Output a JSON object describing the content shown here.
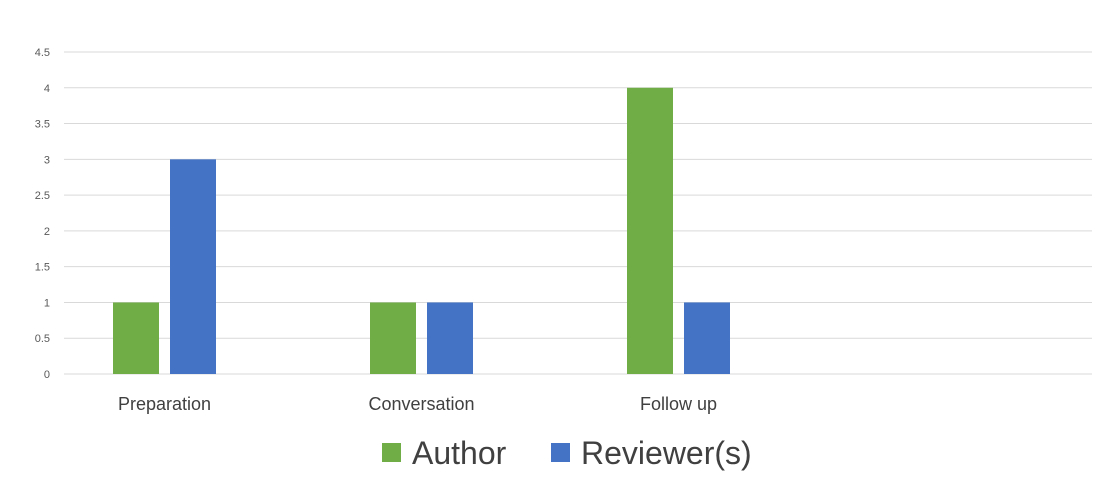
{
  "chart_data": {
    "type": "bar",
    "title": "",
    "xlabel": "",
    "ylabel": "",
    "categories": [
      "Preparation",
      "Conversation",
      "Follow up",
      ""
    ],
    "series": [
      {
        "name": "Author",
        "values": [
          1,
          1,
          4,
          null
        ],
        "color": "#70ad47"
      },
      {
        "name": "Reviewer(s)",
        "values": [
          3,
          1,
          1,
          null
        ],
        "color": "#4472c4"
      }
    ],
    "ylim": [
      0,
      4.5
    ],
    "yticks": [
      "0",
      "0.5",
      "1",
      "1.5",
      "2",
      "2.5",
      "3",
      "3.5",
      "4",
      "4.5"
    ],
    "grid": true,
    "legend_position": "bottom",
    "gridline_color": "#d9d9d9"
  }
}
